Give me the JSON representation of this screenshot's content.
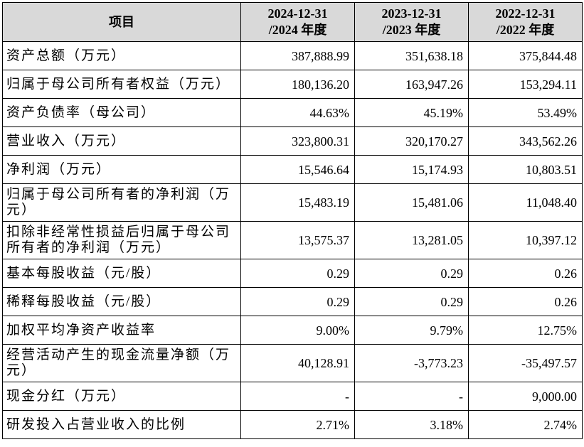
{
  "table": {
    "header": [
      [
        "项目"
      ],
      [
        "2024-12-31",
        "/2024 年度"
      ],
      [
        "2023-12-31",
        "/2023 年度"
      ],
      [
        "2022-12-31",
        "/2022 年度"
      ]
    ],
    "rows": [
      [
        "资产总额（万元）",
        "387,888.99",
        "351,638.18",
        "375,844.48"
      ],
      [
        "归属于母公司所有者权益（万元）",
        "180,136.20",
        "163,947.26",
        "153,294.11"
      ],
      [
        "资产负债率（母公司）",
        "44.63%",
        "45.19%",
        "53.49%"
      ],
      [
        "营业收入（万元）",
        "323,800.31",
        "320,170.27",
        "343,562.26"
      ],
      [
        "净利润（万元）",
        "15,546.64",
        "15,174.93",
        "10,803.51"
      ],
      [
        "归属于母公司所有者的净利润（万元）",
        "15,483.19",
        "15,481.06",
        "11,048.40"
      ],
      [
        "扣除非经常性损益后归属于母公司所有者的净利润（万元）",
        "13,575.37",
        "13,281.05",
        "10,397.12"
      ],
      [
        "基本每股收益（元/股）",
        "0.29",
        "0.29",
        "0.26"
      ],
      [
        "稀释每股收益（元/股）",
        "0.29",
        "0.29",
        "0.26"
      ],
      [
        "加权平均净资产收益率",
        "9.00%",
        "9.79%",
        "12.75%"
      ],
      [
        "经营活动产生的现金流量净额（万元）",
        "40,128.91",
        "-3,773.23",
        "-35,497.57"
      ],
      [
        "现金分红（万元）",
        "-",
        "-",
        "9,000.00"
      ],
      [
        "研发投入占营业收入的比例",
        "2.71%",
        "3.18%",
        "2.74%"
      ]
    ]
  }
}
